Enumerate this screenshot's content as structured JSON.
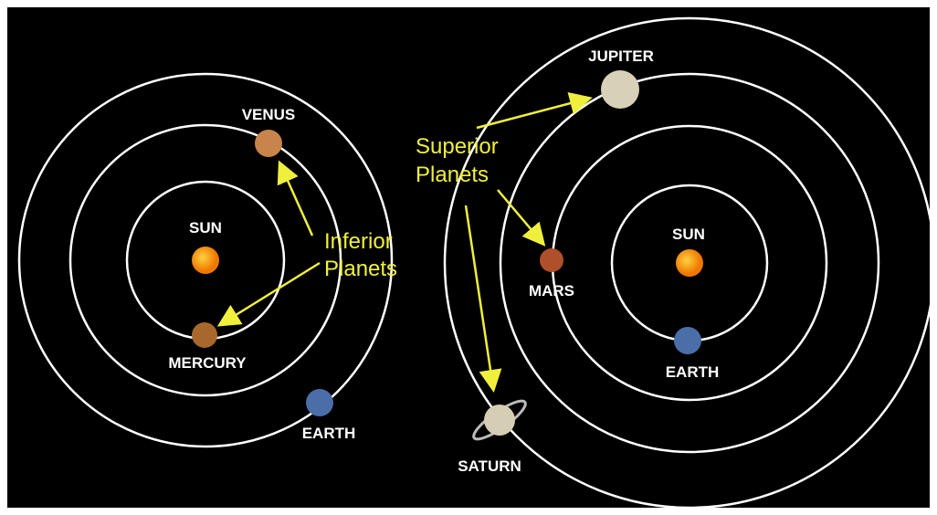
{
  "left": {
    "sun": "SUN",
    "venus": "VENUS",
    "mercury": "MERCURY",
    "earth": "EARTH",
    "annotation": [
      "Inferior",
      "Planets"
    ]
  },
  "right": {
    "jupiter": "JUPITER",
    "sun": "SUN",
    "mars": "MARS",
    "earth": "EARTH",
    "saturn": "SATURN",
    "annotation": [
      "Superior",
      "Planets"
    ]
  }
}
